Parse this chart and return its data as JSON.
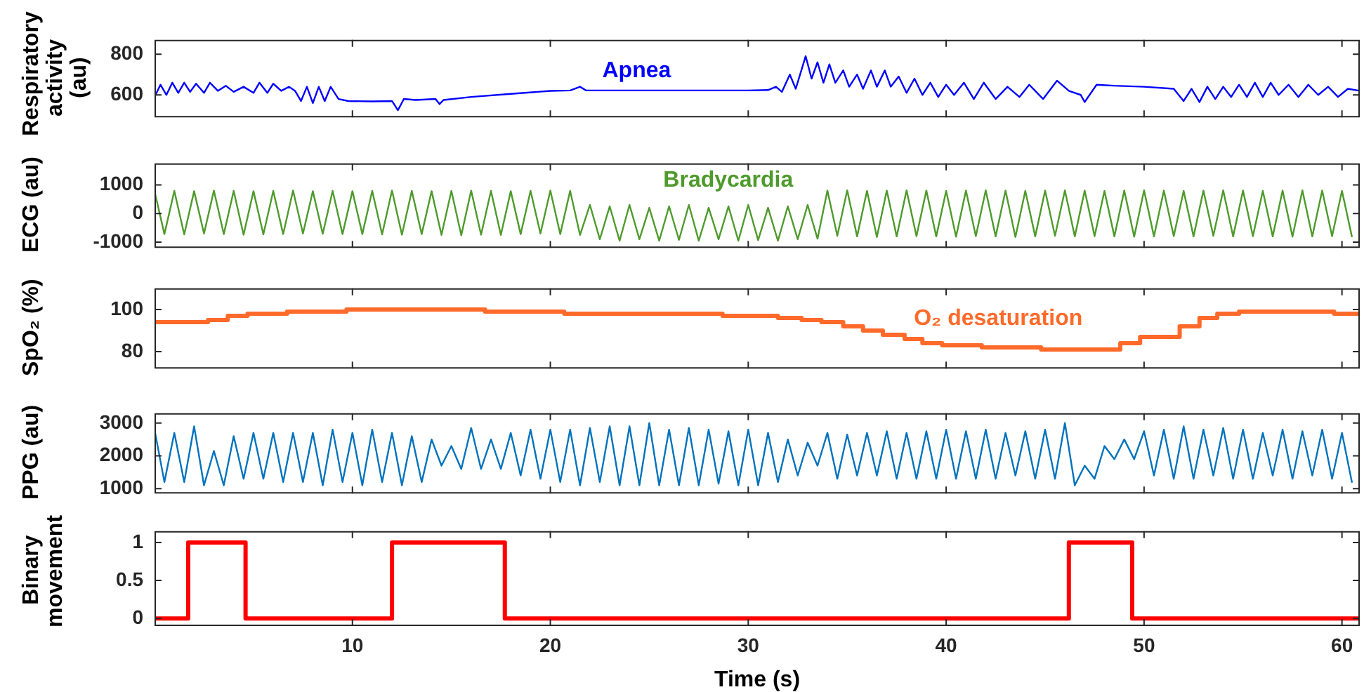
{
  "chart_data": [
    {
      "type": "line",
      "ylabel": "Respiratory activity (au)",
      "xlim": [
        0,
        60.9
      ],
      "xticks": [
        10,
        20,
        30,
        40,
        50,
        60
      ],
      "ylim": [
        490,
        870
      ],
      "yticks": [
        600,
        800
      ],
      "tick_labels": "y",
      "marker": "none",
      "annotations": [
        "Apnea"
      ],
      "x": [
        0,
        0.3,
        0.6,
        0.9,
        1.2,
        1.5,
        1.8,
        2.1,
        2.5,
        2.8,
        3.2,
        3.6,
        4.0,
        4.5,
        5.0,
        5.3,
        5.7,
        6.0,
        6.4,
        6.8,
        7.1,
        7.4,
        7.7,
        8.0,
        8.3,
        8.6,
        8.9,
        9.3,
        9.8,
        11,
        12.0,
        12.3,
        12.6,
        13.2,
        14.2,
        14.4,
        14.6,
        16,
        18,
        20,
        21,
        21.5,
        21.8,
        25,
        30,
        31.0,
        31.4,
        31.7,
        32.1,
        32.4,
        32.9,
        33.2,
        33.5,
        33.8,
        34.1,
        34.4,
        34.8,
        35.1,
        35.5,
        35.8,
        36.2,
        36.5,
        36.9,
        37.2,
        37.6,
        38.0,
        38.4,
        38.8,
        39.2,
        39.6,
        40,
        40.4,
        40.9,
        41.4,
        41.9,
        42.5,
        43.1,
        43.7,
        44.2,
        44.9,
        45.6,
        46.2,
        46.8,
        47.0,
        47.6,
        48.5,
        50,
        51.5,
        52.0,
        52.4,
        52.8,
        53.2,
        53.6,
        54,
        54.4,
        54.8,
        55.2,
        55.6,
        56,
        56.4,
        56.8,
        57.3,
        57.8,
        58.3,
        58.8,
        59.3,
        59.8,
        60.3,
        60.9
      ],
      "series": [
        {
          "color": "#0000ff",
          "values": [
            590,
            650,
            600,
            660,
            610,
            660,
            615,
            655,
            610,
            660,
            620,
            645,
            615,
            640,
            610,
            660,
            610,
            655,
            620,
            640,
            620,
            570,
            640,
            560,
            640,
            570,
            640,
            580,
            570,
            568,
            570,
            525,
            580,
            575,
            580,
            555,
            575,
            590,
            605,
            620,
            622,
            640,
            622,
            622,
            622,
            624,
            640,
            615,
            700,
            630,
            790,
            680,
            760,
            660,
            750,
            660,
            720,
            640,
            700,
            630,
            720,
            640,
            720,
            640,
            690,
            610,
            680,
            600,
            660,
            590,
            650,
            600,
            660,
            580,
            660,
            580,
            640,
            590,
            650,
            580,
            670,
            620,
            600,
            565,
            650,
            645,
            640,
            630,
            570,
            630,
            565,
            640,
            580,
            640,
            590,
            650,
            590,
            660,
            590,
            660,
            600,
            650,
            590,
            650,
            600,
            640,
            590,
            630,
            620
          ]
        }
      ]
    },
    {
      "type": "line",
      "ylabel": "ECG (au)",
      "xlim": [
        0,
        60.9
      ],
      "xticks": [
        10,
        20,
        30,
        40,
        50,
        60
      ],
      "ylim": [
        -1200,
        1750
      ],
      "yticks": [
        -1000,
        0,
        1000
      ],
      "tick_labels": "y",
      "marker": "none",
      "annotations": [
        "Bradycardia"
      ],
      "x": [
        0,
        0.5,
        1,
        1.5,
        2,
        2.5,
        3,
        3.5,
        4,
        4.5,
        5,
        5.5,
        6,
        6.5,
        7,
        7.5,
        8,
        8.5,
        9,
        9.5,
        10,
        10.5,
        11,
        11.5,
        12,
        12.5,
        13,
        13.5,
        14,
        14.5,
        15,
        15.5,
        16,
        16.5,
        17,
        17.5,
        18,
        18.5,
        19,
        19.5,
        20,
        20.5,
        21,
        21.5,
        22,
        22.5,
        23,
        23.5,
        24,
        24.5,
        25,
        25.5,
        26,
        26.5,
        27,
        27.5,
        28,
        28.5,
        29,
        29.5,
        30,
        30.5,
        31,
        31.5,
        32,
        32.5,
        33,
        33.5,
        34,
        34.5,
        35,
        35.5,
        36,
        36.5,
        37,
        37.5,
        38,
        38.5,
        39,
        39.5,
        40,
        40.5,
        41,
        41.5,
        42,
        42.5,
        43,
        43.5,
        44,
        44.5,
        45,
        45.5,
        46,
        46.5,
        47,
        47.5,
        48,
        48.5,
        49,
        49.5,
        50,
        50.5,
        51,
        51.5,
        52,
        52.5,
        53,
        53.5,
        54,
        54.5,
        55,
        55.5,
        56,
        56.5,
        57,
        57.5,
        58,
        58.5,
        59,
        59.5,
        60,
        60.5
      ],
      "series": [
        {
          "color": "#4e9a2c",
          "values": [
            780,
            -720,
            790,
            -730,
            780,
            -700,
            800,
            -720,
            790,
            -740,
            780,
            -730,
            790,
            -720,
            800,
            -700,
            780,
            -710,
            790,
            -720,
            780,
            -720,
            790,
            -730,
            800,
            -740,
            790,
            -720,
            780,
            -750,
            790,
            -760,
            800,
            -740,
            790,
            -750,
            780,
            -720,
            790,
            -700,
            800,
            -720,
            790,
            -750,
            300,
            -900,
            250,
            -950,
            300,
            -900,
            200,
            -950,
            250,
            -920,
            300,
            -950,
            200,
            -900,
            250,
            -950,
            300,
            -930,
            200,
            -950,
            250,
            -900,
            300,
            -880,
            800,
            -780,
            810,
            -800,
            790,
            -820,
            800,
            -800,
            810,
            -790,
            800,
            -800,
            790,
            -810,
            800,
            -790,
            810,
            -800,
            800,
            -820,
            790,
            -800,
            800,
            -780,
            810,
            -800,
            800,
            -790,
            790,
            -800,
            800,
            -810,
            810,
            -800,
            800,
            -790,
            790,
            -800,
            800,
            -780,
            810,
            -800,
            800,
            -790,
            790,
            -800,
            800,
            -810,
            810,
            -800,
            800,
            -790,
            790,
            -800
          ]
        }
      ]
    },
    {
      "type": "step",
      "ylabel": "SpO₂ (%)",
      "xlim": [
        0,
        60.9
      ],
      "xticks": [
        10,
        20,
        30,
        40,
        50,
        60
      ],
      "ylim": [
        72,
        110
      ],
      "yticks": [
        80,
        100
      ],
      "tick_labels": "y",
      "marker": "none",
      "annotations": [
        "O₂ desaturation"
      ],
      "x": [
        0,
        2.7,
        3.7,
        4.7,
        6.7,
        9.7,
        16.7,
        20.7,
        28.7,
        31.5,
        32.7,
        33.7,
        34.8,
        35.8,
        36.8,
        37.9,
        38.8,
        39.8,
        41.8,
        44.8,
        48.8,
        49.8,
        51.8,
        52.8,
        53.7,
        54.8,
        59.6,
        60.9
      ],
      "series": [
        {
          "color": "#ff6a2a",
          "values": [
            94,
            95,
            97,
            98,
            99,
            100,
            99,
            98,
            97,
            96,
            95,
            94,
            92,
            90,
            88,
            86,
            84,
            83,
            82,
            81,
            84,
            87,
            92,
            96,
            98,
            99,
            98,
            98
          ]
        }
      ]
    },
    {
      "type": "line",
      "ylabel": "PPG (au)",
      "xlim": [
        0,
        60.9
      ],
      "xticks": [
        10,
        20,
        30,
        40,
        50,
        60
      ],
      "ylim": [
        850,
        3300
      ],
      "yticks": [
        1000,
        2000,
        3000
      ],
      "tick_labels": "y",
      "marker": "none",
      "x": [
        0,
        0.5,
        1,
        1.5,
        2,
        2.5,
        3,
        3.5,
        4,
        4.5,
        5,
        5.5,
        6,
        6.5,
        7,
        7.5,
        8,
        8.5,
        9,
        9.5,
        10,
        10.5,
        11,
        11.5,
        12,
        12.5,
        13,
        13.5,
        14,
        14.5,
        15,
        15.5,
        16,
        16.5,
        17,
        17.5,
        18,
        18.5,
        19,
        19.5,
        20,
        20.5,
        21,
        21.5,
        22,
        22.5,
        23,
        23.5,
        24,
        24.5,
        25,
        25.5,
        26,
        26.5,
        27,
        27.5,
        28,
        28.5,
        29,
        29.5,
        30,
        30.5,
        31,
        31.5,
        32,
        32.5,
        33,
        33.5,
        34,
        34.5,
        35,
        35.5,
        36,
        36.5,
        37,
        37.5,
        38,
        38.5,
        39,
        39.5,
        40,
        40.5,
        41,
        41.5,
        42,
        42.5,
        43,
        43.5,
        44,
        44.5,
        45,
        45.5,
        46,
        46.5,
        47,
        47.5,
        48,
        48.5,
        49,
        49.5,
        50,
        50.5,
        51,
        51.5,
        52,
        52.5,
        53,
        53.5,
        54,
        54.5,
        55,
        55.5,
        56,
        56.5,
        57,
        57.5,
        58,
        58.5,
        59,
        59.5,
        60,
        60.5
      ],
      "series": [
        {
          "color": "#0072bd",
          "values": [
            2800,
            1200,
            2700,
            1200,
            2900,
            1100,
            2150,
            1100,
            2600,
            1300,
            2700,
            1300,
            2700,
            1200,
            2700,
            1200,
            2700,
            1100,
            2800,
            1200,
            2700,
            1100,
            2800,
            1200,
            2700,
            1100,
            2600,
            1200,
            2500,
            1700,
            2300,
            1600,
            2850,
            1600,
            2500,
            1600,
            2700,
            1400,
            2800,
            1300,
            2800,
            1200,
            2800,
            1100,
            2850,
            1200,
            2900,
            1100,
            2900,
            1100,
            3000,
            1100,
            2800,
            1100,
            2850,
            1100,
            2800,
            1150,
            2750,
            1100,
            2800,
            1100,
            2700,
            1200,
            2500,
            1400,
            2400,
            1700,
            2700,
            1300,
            2650,
            1400,
            2700,
            1400,
            2750,
            1300,
            2700,
            1300,
            2750,
            1300,
            2800,
            1300,
            2750,
            1300,
            2800,
            1300,
            2700,
            1400,
            2750,
            1300,
            2800,
            1300,
            3000,
            1100,
            1700,
            1300,
            2300,
            1900,
            2500,
            1900,
            2750,
            1400,
            2800,
            1300,
            2900,
            1300,
            2800,
            1400,
            2850,
            1300,
            2800,
            1300,
            2700,
            1400,
            2800,
            1300,
            2750,
            1400,
            2800,
            1300,
            2700,
            1200
          ]
        }
      ]
    },
    {
      "type": "step",
      "ylabel": "Binary movement",
      "xlabel": "Time (s)",
      "xlim": [
        0,
        60.9
      ],
      "xticks": [
        10,
        20,
        30,
        40,
        50,
        60
      ],
      "ylim": [
        -0.1,
        1.15
      ],
      "yticks": [
        0,
        0.5,
        1
      ],
      "marker": "none",
      "x": [
        0,
        1.7,
        4.6,
        12.0,
        17.7,
        46.2,
        49.4,
        60.9
      ],
      "series": [
        {
          "color": "#ff0000",
          "values": [
            0,
            1,
            0,
            1,
            0,
            1,
            0,
            0
          ]
        }
      ]
    }
  ]
}
